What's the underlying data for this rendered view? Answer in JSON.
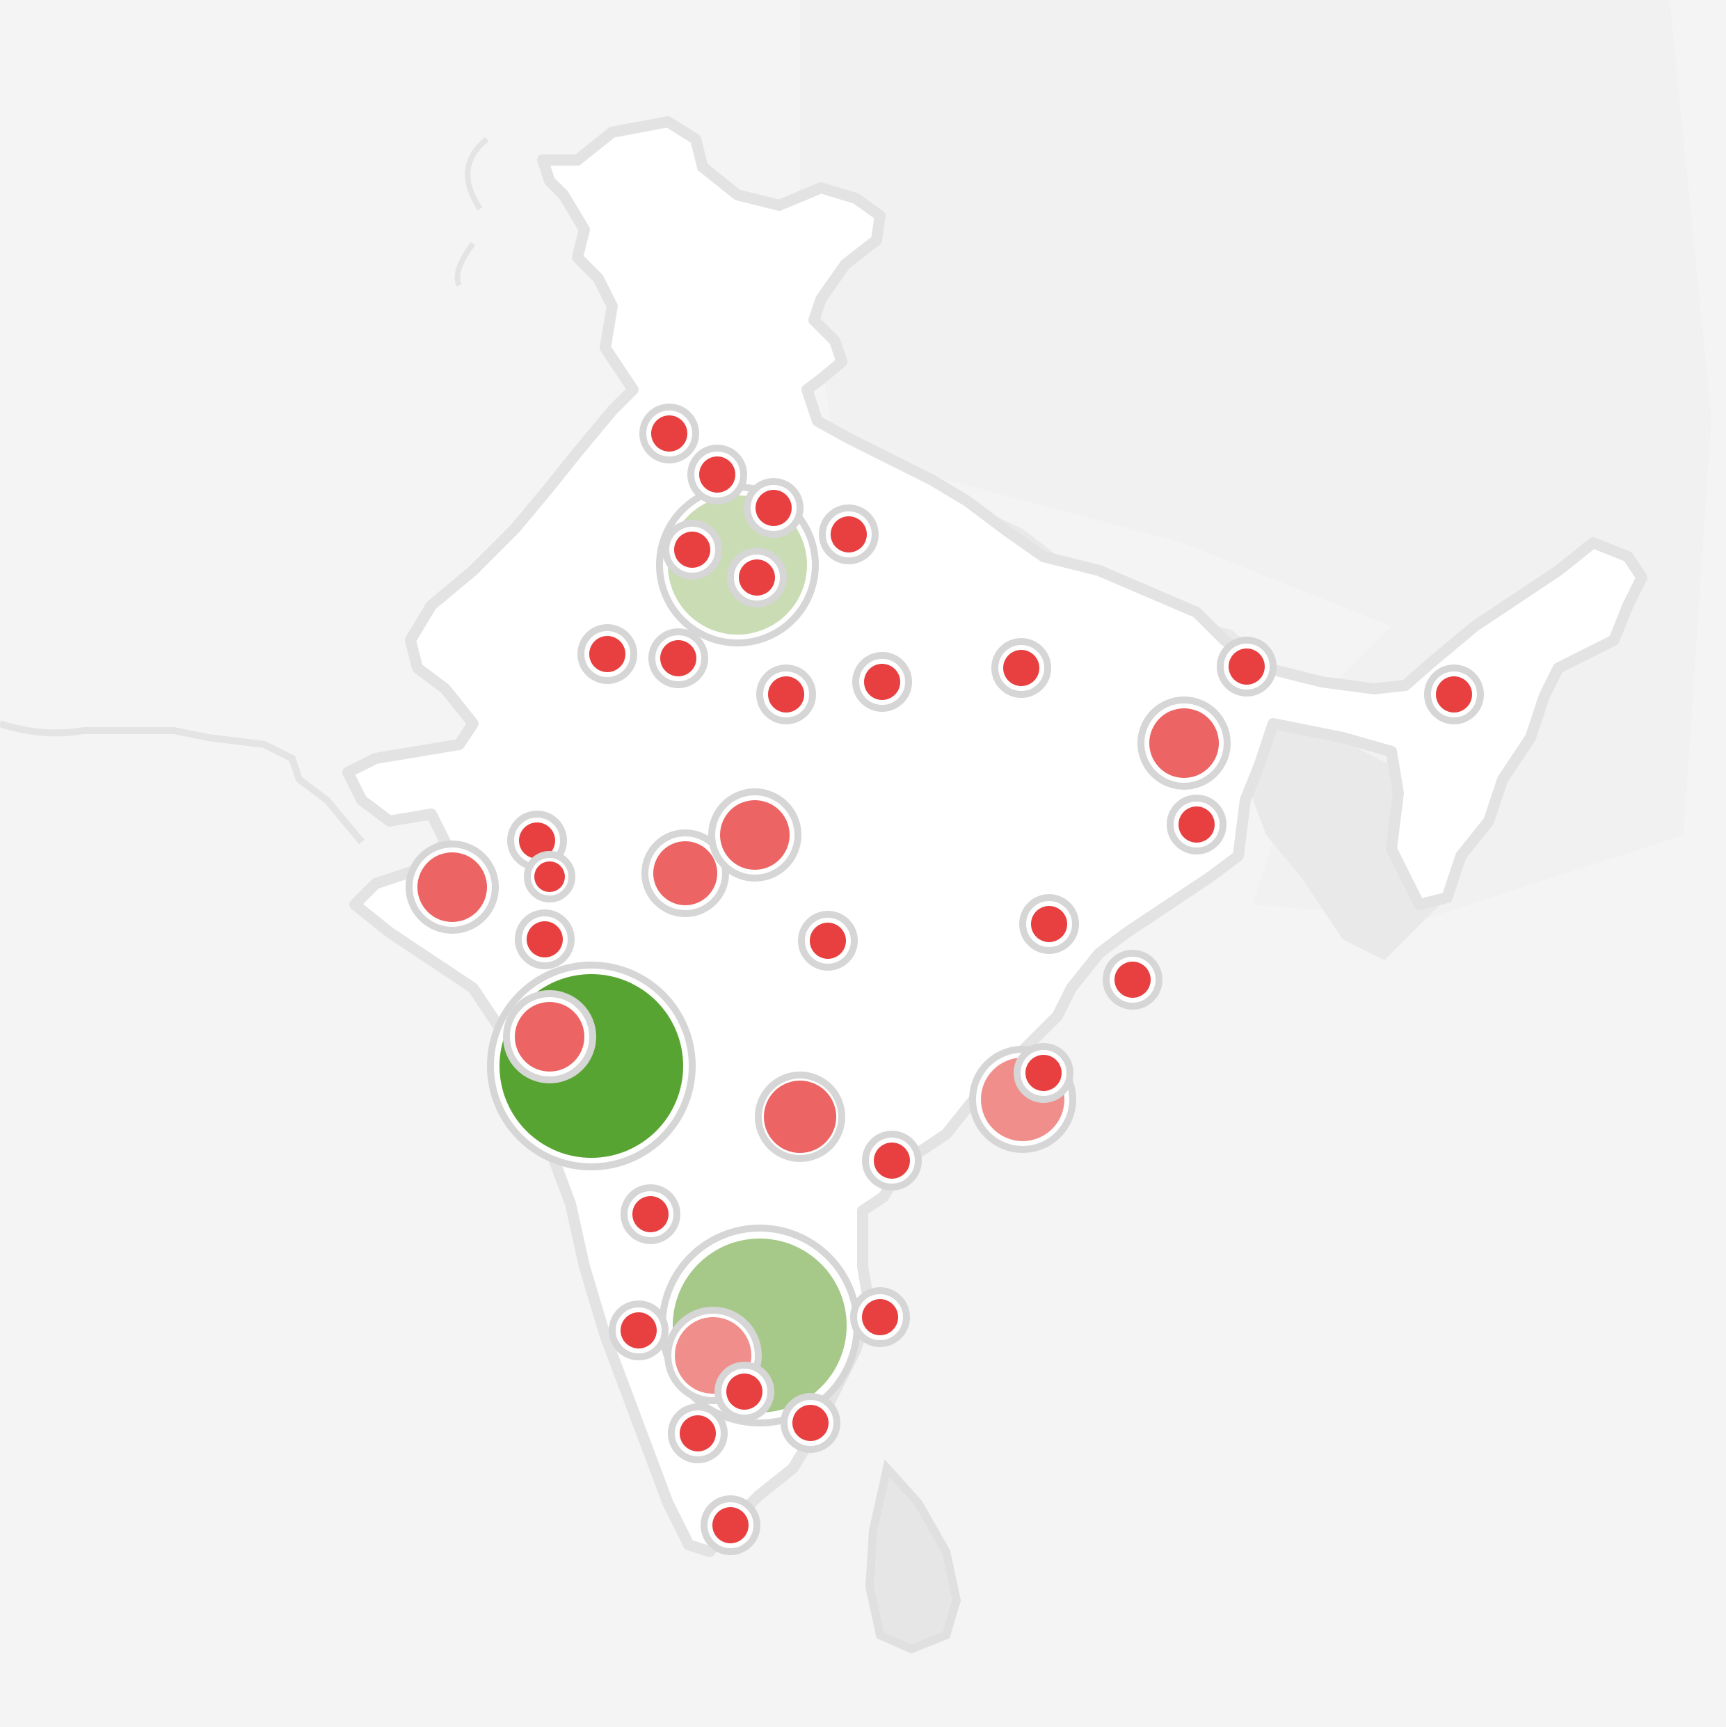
{
  "map": {
    "colors": {
      "background": "#f4f4f4",
      "land": "#ffffff",
      "neighbor_land": "#e9e9e9",
      "border": "#e3e3e3",
      "marker_small": "#e84040",
      "marker_medium": "#ec6464",
      "marker_light": "#f08e8b",
      "cluster_dark_green": "#58a432",
      "cluster_mid_green": "#a6c98a",
      "cluster_light_green": "#c9dcb3"
    },
    "clusters": [
      {
        "name": "cluster-delhi",
        "level": "light-green"
      },
      {
        "name": "cluster-mumbai",
        "level": "dark-green"
      },
      {
        "name": "cluster-bangalore",
        "level": "mid-green"
      }
    ],
    "markers": [
      {
        "name": "marker-amritsar",
        "level": "small"
      },
      {
        "name": "marker-ambala",
        "level": "small"
      },
      {
        "name": "marker-dehradun",
        "level": "small"
      },
      {
        "name": "marker-delhi",
        "level": "small"
      },
      {
        "name": "marker-gurgaon",
        "level": "small"
      },
      {
        "name": "marker-meerut",
        "level": "small"
      },
      {
        "name": "marker-jaipur",
        "level": "small"
      },
      {
        "name": "marker-agra",
        "level": "small"
      },
      {
        "name": "marker-gwalior",
        "level": "small"
      },
      {
        "name": "marker-lucknow",
        "level": "small"
      },
      {
        "name": "marker-varanasi",
        "level": "small"
      },
      {
        "name": "marker-siliguri",
        "level": "small"
      },
      {
        "name": "marker-guwahati",
        "level": "small"
      },
      {
        "name": "marker-kolkata",
        "level": "medium"
      },
      {
        "name": "marker-jamshedpur",
        "level": "small"
      },
      {
        "name": "marker-rajkot",
        "level": "medium"
      },
      {
        "name": "marker-ahmedabad",
        "level": "small"
      },
      {
        "name": "marker-vadodara",
        "level": "small"
      },
      {
        "name": "marker-surat",
        "level": "small"
      },
      {
        "name": "marker-indore",
        "level": "medium"
      },
      {
        "name": "marker-bhopal",
        "level": "medium"
      },
      {
        "name": "marker-nagpur",
        "level": "small"
      },
      {
        "name": "marker-raipur",
        "level": "small"
      },
      {
        "name": "marker-bhubaneswar",
        "level": "small"
      },
      {
        "name": "marker-pune",
        "level": "medium"
      },
      {
        "name": "marker-hyderabad",
        "level": "medium"
      },
      {
        "name": "marker-visakhapatnam-area",
        "level": "light"
      },
      {
        "name": "marker-visakhapatnam",
        "level": "small"
      },
      {
        "name": "marker-vijayawada",
        "level": "small"
      },
      {
        "name": "marker-goa",
        "level": "small"
      },
      {
        "name": "marker-mangalore",
        "level": "small"
      },
      {
        "name": "marker-bangalore",
        "level": "light"
      },
      {
        "name": "marker-chennai",
        "level": "small"
      },
      {
        "name": "marker-mysore",
        "level": "small"
      },
      {
        "name": "marker-coimbatore",
        "level": "small"
      },
      {
        "name": "marker-salem",
        "level": "small"
      },
      {
        "name": "marker-trivandrum",
        "level": "small"
      }
    ]
  }
}
